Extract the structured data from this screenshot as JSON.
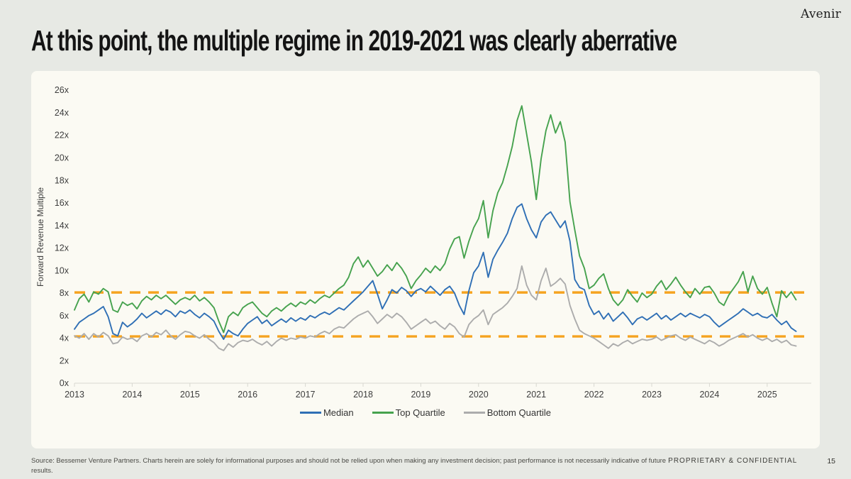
{
  "slide": {
    "logo": "Avenir",
    "title": "At this point, the multiple regime in 2019-2021 was clearly aberrative",
    "footer": {
      "source": "Source: Bessemer Venture Partners. Charts herein are solely for informational purposes and should not be relied upon when making any investment decision; past performance is not necessarily indicative of future results.",
      "classification": "PROPRIETARY & CONFIDENTIAL",
      "page_number": "15"
    }
  },
  "chart_data": {
    "type": "line",
    "title": "",
    "xlabel": "",
    "ylabel": "Forward Revenue Multiple",
    "ylim": [
      0,
      26
    ],
    "ytick_step": 2,
    "ytick_suffix": "x",
    "grid": false,
    "legend_position": "bottom",
    "x_tick_labels": [
      "2013",
      "2014",
      "2015",
      "2016",
      "2017",
      "2018",
      "2019",
      "2020",
      "2021",
      "2022",
      "2023",
      "2024",
      "2025"
    ],
    "x_start": 2013.0,
    "x_step": 0.0833333,
    "points_per_series": 151,
    "colors": {
      "median": "#2f6fb5",
      "top_quartile": "#46a24e",
      "bottom_quartile": "#acacac",
      "reference": "#f5a320"
    },
    "reference_lines": [
      {
        "name": "upper-band",
        "value": 8.05,
        "style": "dashed"
      },
      {
        "name": "lower-band",
        "value": 4.15,
        "style": "dashed"
      }
    ],
    "series": [
      {
        "name": "Median",
        "color": "#2f6fb5",
        "values": [
          4.8,
          5.4,
          5.7,
          6.0,
          6.2,
          6.5,
          6.8,
          5.9,
          4.4,
          4.2,
          5.4,
          5.0,
          5.3,
          5.7,
          6.2,
          5.8,
          6.1,
          6.4,
          6.1,
          6.5,
          6.3,
          5.9,
          6.4,
          6.2,
          6.5,
          6.1,
          5.8,
          6.2,
          5.9,
          5.5,
          4.6,
          3.9,
          4.7,
          4.4,
          4.2,
          4.8,
          5.3,
          5.6,
          5.9,
          5.3,
          5.6,
          5.1,
          5.4,
          5.7,
          5.4,
          5.8,
          5.5,
          5.8,
          5.6,
          6.0,
          5.8,
          6.1,
          6.3,
          6.1,
          6.4,
          6.7,
          6.5,
          6.9,
          7.3,
          7.7,
          8.1,
          8.6,
          9.1,
          7.9,
          6.6,
          7.4,
          8.3,
          8.0,
          8.5,
          8.2,
          7.7,
          8.2,
          8.4,
          8.1,
          8.6,
          8.2,
          7.8,
          8.3,
          8.6,
          8.0,
          6.9,
          6.1,
          8.2,
          9.8,
          10.4,
          11.6,
          9.4,
          11.0,
          11.8,
          12.5,
          13.3,
          14.6,
          15.6,
          15.9,
          14.6,
          13.6,
          12.9,
          14.3,
          14.9,
          15.2,
          14.5,
          13.8,
          14.4,
          12.6,
          9.2,
          8.5,
          8.3,
          6.9,
          6.1,
          6.4,
          5.7,
          6.2,
          5.5,
          5.9,
          6.3,
          5.8,
          5.2,
          5.7,
          5.9,
          5.6,
          5.9,
          6.2,
          5.7,
          6.0,
          5.6,
          5.9,
          6.2,
          5.9,
          6.2,
          6.0,
          5.8,
          6.1,
          5.9,
          5.4,
          5.0,
          5.3,
          5.6,
          5.9,
          6.2,
          6.6,
          6.3,
          6.0,
          6.2,
          5.9,
          5.8,
          6.1,
          5.6,
          5.2,
          5.5,
          4.9,
          4.6
        ]
      },
      {
        "name": "Top Quartile",
        "color": "#46a24e",
        "values": [
          6.5,
          7.5,
          7.9,
          7.2,
          8.1,
          7.9,
          8.4,
          8.1,
          6.5,
          6.3,
          7.2,
          6.9,
          7.1,
          6.6,
          7.3,
          7.7,
          7.4,
          7.8,
          7.5,
          7.8,
          7.4,
          7.0,
          7.4,
          7.6,
          7.4,
          7.8,
          7.3,
          7.6,
          7.2,
          6.7,
          5.5,
          4.5,
          5.9,
          6.3,
          6.0,
          6.7,
          7.0,
          7.2,
          6.7,
          6.2,
          5.9,
          6.4,
          6.7,
          6.4,
          6.8,
          7.1,
          6.8,
          7.2,
          7.0,
          7.4,
          7.1,
          7.5,
          7.8,
          7.6,
          8.0,
          8.4,
          8.7,
          9.4,
          10.6,
          11.2,
          10.3,
          10.9,
          10.2,
          9.5,
          9.9,
          10.5,
          10.0,
          10.7,
          10.2,
          9.5,
          8.4,
          9.1,
          9.6,
          10.2,
          9.8,
          10.4,
          10.0,
          10.6,
          11.9,
          12.8,
          13.0,
          11.1,
          12.6,
          13.8,
          14.6,
          16.2,
          12.9,
          15.3,
          16.9,
          17.8,
          19.3,
          21.0,
          23.3,
          24.6,
          22.1,
          19.6,
          16.3,
          19.9,
          22.4,
          23.8,
          22.2,
          23.2,
          21.4,
          16.1,
          13.6,
          11.3,
          10.2,
          8.4,
          8.7,
          9.3,
          9.7,
          8.4,
          7.4,
          6.9,
          7.4,
          8.3,
          7.7,
          7.2,
          8.0,
          7.6,
          7.9,
          8.6,
          9.1,
          8.3,
          8.8,
          9.4,
          8.7,
          8.1,
          7.6,
          8.4,
          7.9,
          8.5,
          8.6,
          8.0,
          7.2,
          6.9,
          7.8,
          8.4,
          9.0,
          9.9,
          8.1,
          9.5,
          8.4,
          7.9,
          8.5,
          7.1,
          5.9,
          8.2,
          7.6,
          8.1,
          7.4
        ]
      },
      {
        "name": "Bottom Quartile",
        "color": "#acacac",
        "values": [
          4.2,
          4.0,
          4.4,
          3.9,
          4.4,
          4.1,
          4.5,
          4.2,
          3.5,
          3.6,
          4.1,
          3.9,
          4.0,
          3.7,
          4.2,
          4.4,
          4.1,
          4.5,
          4.3,
          4.7,
          4.2,
          3.9,
          4.3,
          4.6,
          4.5,
          4.2,
          4.0,
          4.3,
          3.9,
          3.6,
          3.1,
          2.9,
          3.5,
          3.2,
          3.6,
          3.8,
          3.7,
          3.9,
          3.6,
          3.4,
          3.7,
          3.3,
          3.7,
          4.0,
          3.8,
          4.0,
          3.9,
          4.1,
          4.0,
          4.2,
          4.1,
          4.4,
          4.6,
          4.4,
          4.8,
          5.0,
          4.9,
          5.3,
          5.7,
          6.0,
          6.2,
          6.4,
          5.9,
          5.3,
          5.7,
          6.1,
          5.8,
          6.2,
          5.9,
          5.4,
          4.8,
          5.1,
          5.4,
          5.7,
          5.3,
          5.5,
          5.1,
          4.8,
          5.3,
          5.0,
          4.4,
          4.1,
          5.2,
          5.7,
          6.0,
          6.5,
          5.2,
          6.1,
          6.4,
          6.7,
          7.1,
          7.7,
          8.4,
          10.4,
          8.7,
          7.8,
          7.4,
          9.1,
          10.2,
          8.6,
          8.9,
          9.3,
          8.8,
          6.9,
          5.7,
          4.7,
          4.4,
          4.2,
          4.0,
          3.7,
          3.4,
          3.1,
          3.5,
          3.3,
          3.6,
          3.8,
          3.5,
          3.7,
          3.9,
          3.8,
          3.9,
          4.1,
          3.8,
          4.0,
          4.2,
          4.3,
          4.0,
          3.8,
          4.1,
          3.9,
          3.7,
          3.5,
          3.8,
          3.6,
          3.3,
          3.5,
          3.8,
          4.0,
          4.2,
          4.4,
          4.1,
          4.3,
          4.0,
          3.8,
          4.0,
          3.7,
          3.9,
          3.6,
          3.8,
          3.4,
          3.3
        ]
      }
    ]
  }
}
